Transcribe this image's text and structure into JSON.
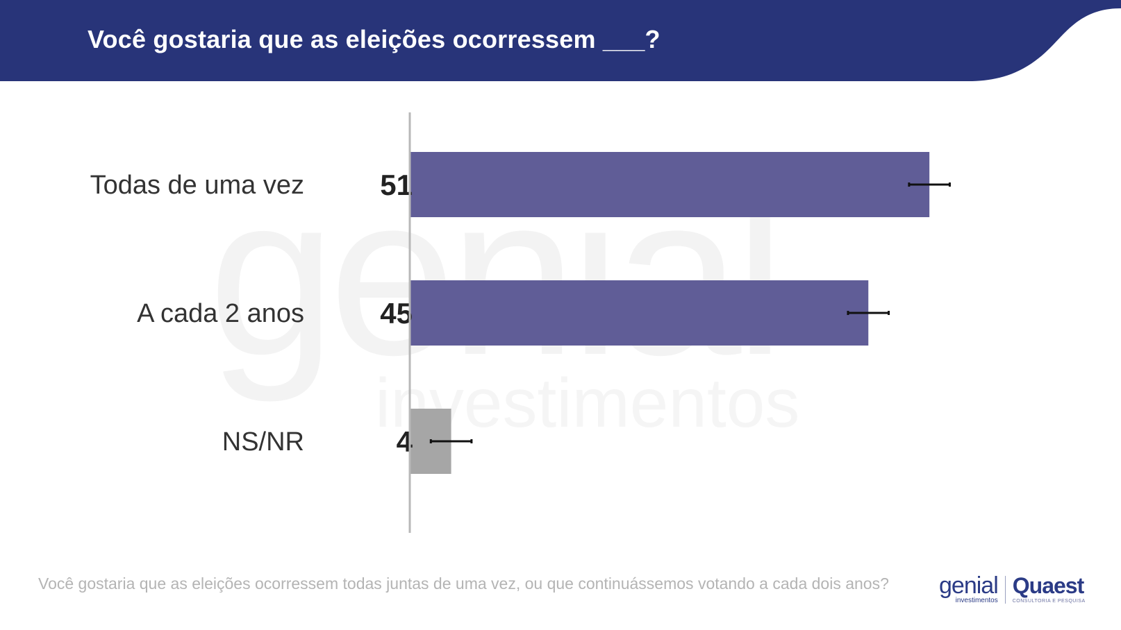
{
  "header": {
    "title": "Você gostaria que as eleições ocorressem ___?"
  },
  "chart_data": {
    "type": "bar",
    "orientation": "horizontal",
    "categories": [
      "Todas de uma vez",
      "A cada 2 anos",
      "NS/NR"
    ],
    "values": [
      51,
      45,
      4
    ],
    "error_margin": [
      2,
      2,
      2
    ],
    "value_labels": [
      "51",
      "45",
      "4"
    ],
    "xlim": [
      0,
      100
    ],
    "colors": [
      "#605d97",
      "#605d97",
      "#a6a6a6"
    ],
    "title": "Você gostaria que as eleições ocorressem ___?",
    "xlabel": "",
    "ylabel": "",
    "grid": false
  },
  "footnote": "Você gostaria que as eleições ocorressem todas juntas de uma vez, ou que continuássemos votando a cada dois anos?",
  "logos": {
    "genial": "genial",
    "genial_sub": "investimentos",
    "quaest": "Quaest",
    "quaest_sub": "CONSULTORIA E PESQUISA"
  },
  "watermark": {
    "text_big": "genial",
    "text_small": "investimentos"
  },
  "colors": {
    "header_bg": "#283479",
    "bar_main": "#605d97",
    "bar_other": "#a6a6a6",
    "axis": "#b8b8b8"
  }
}
